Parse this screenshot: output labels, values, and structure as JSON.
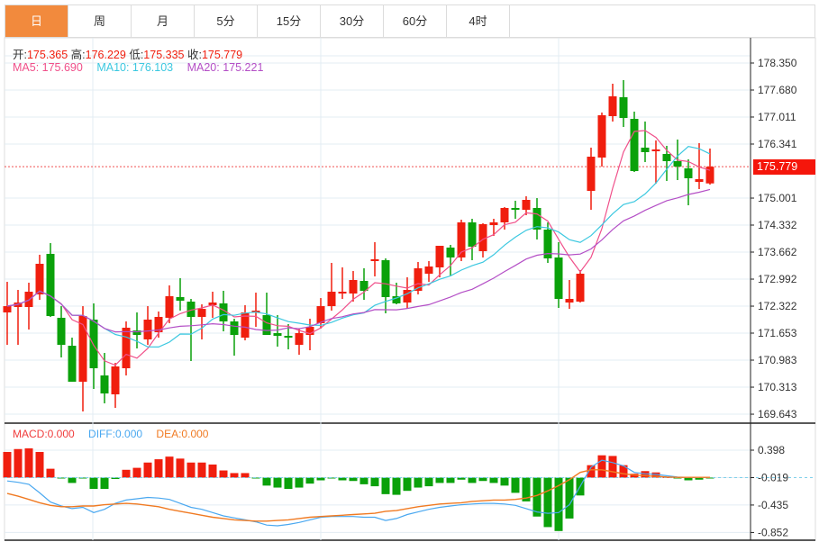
{
  "tabs": [
    {
      "label": "日",
      "active": true
    },
    {
      "label": "周"
    },
    {
      "label": "月"
    },
    {
      "label": "5分"
    },
    {
      "label": "15分"
    },
    {
      "label": "30分"
    },
    {
      "label": "60分"
    },
    {
      "label": "4时"
    }
  ],
  "ohlc_info": {
    "open_label": "开:",
    "open": "175.365",
    "high_label": "高:",
    "high": "176.229",
    "low_label": "低:",
    "low": "175.335",
    "close_label": "收:",
    "close": "175.779"
  },
  "ma_info": {
    "ma5": "MA5: 175.690",
    "ma10": "MA10: 176.103",
    "ma20": "MA20: 175.221"
  },
  "macd_info": {
    "macd": "MACD:0.000",
    "diff": "DIFF:0.000",
    "dea": "DEA:0.000"
  },
  "current_price": "175.779",
  "colors": {
    "up": "#f01e0e",
    "down": "#0aa10a",
    "ma5": "#f0508a",
    "ma10": "#3cc8e0",
    "ma20": "#b44fc6",
    "diff": "#4aa8f0",
    "dea": "#f07a22",
    "active_tab": "#f28a3d"
  },
  "chart_data": [
    {
      "type": "candlestick",
      "ylim": [
        169.643,
        178.35
      ],
      "yticks": [
        "178.350",
        "177.680",
        "177.011",
        "176.341",
        "175.001",
        "174.332",
        "173.662",
        "172.992",
        "172.322",
        "171.653",
        "170.983",
        "170.313",
        "169.643"
      ],
      "grid": true,
      "ma_periods": [
        5,
        10,
        20
      ],
      "ohlc": [
        [
          172.166,
          172.925,
          171.363,
          172.322
        ],
        [
          172.3,
          172.724,
          171.363,
          172.412
        ],
        [
          172.3,
          172.903,
          171.742,
          172.68
        ],
        [
          172.613,
          173.596,
          172.479,
          173.372
        ],
        [
          173.618,
          173.885,
          172.055,
          172.077
        ],
        [
          172.033,
          172.322,
          171.05,
          171.363
        ],
        [
          171.34,
          171.541,
          170.448,
          170.448
        ],
        [
          170.448,
          172.322,
          169.711,
          172.077
        ],
        [
          171.988,
          172.39,
          170.269,
          170.782
        ],
        [
          170.604,
          171.162,
          169.912,
          170.157
        ],
        [
          170.135,
          170.916,
          169.8,
          170.827
        ],
        [
          170.782,
          171.943,
          170.604,
          171.787
        ],
        [
          171.72,
          172.166,
          171.273,
          171.608
        ],
        [
          171.497,
          172.322,
          171.363,
          171.988
        ],
        [
          171.675,
          172.189,
          171.541,
          172.055
        ],
        [
          172.033,
          172.836,
          171.899,
          172.568
        ],
        [
          172.546,
          173.015,
          172.211,
          172.457
        ],
        [
          172.434,
          172.501,
          170.961,
          172.055
        ],
        [
          172.055,
          172.367,
          171.497,
          172.255
        ],
        [
          172.345,
          172.68,
          172.033,
          172.412
        ],
        [
          172.39,
          172.702,
          171.697,
          171.943
        ],
        [
          171.943,
          172.01,
          171.095,
          171.608
        ],
        [
          171.541,
          172.345,
          171.474,
          172.166
        ],
        [
          172.166,
          172.657,
          171.809,
          172.211
        ],
        [
          172.099,
          172.657,
          171.608,
          171.608
        ],
        [
          171.653,
          172.099,
          171.318,
          171.586
        ],
        [
          171.586,
          171.876,
          171.251,
          171.541
        ],
        [
          171.363,
          171.764,
          171.117,
          171.653
        ],
        [
          171.608,
          172.01,
          171.229,
          171.809
        ],
        [
          171.899,
          172.523,
          171.764,
          172.322
        ],
        [
          172.322,
          173.394,
          172.211,
          172.68
        ],
        [
          172.635,
          173.283,
          172.501,
          172.68
        ],
        [
          172.635,
          173.193,
          172.434,
          172.97
        ],
        [
          172.948,
          173.26,
          172.479,
          172.702
        ],
        [
          173.439,
          173.908,
          173.059,
          173.484
        ],
        [
          173.461,
          173.506,
          172.144,
          172.546
        ],
        [
          172.568,
          172.903,
          172.367,
          172.39
        ],
        [
          172.412,
          173.037,
          172.255,
          172.724
        ],
        [
          172.702,
          173.417,
          172.613,
          173.26
        ],
        [
          173.126,
          173.439,
          172.925,
          173.305
        ],
        [
          173.283,
          173.818,
          173.037,
          173.818
        ],
        [
          173.774,
          173.841,
          173.082,
          173.529
        ],
        [
          173.529,
          174.466,
          173.439,
          174.399
        ],
        [
          174.399,
          174.488,
          173.461,
          173.796
        ],
        [
          173.685,
          174.377,
          173.529,
          174.354
        ],
        [
          174.332,
          174.488,
          174.064,
          174.399
        ],
        [
          174.399,
          174.778,
          174.22,
          174.756
        ],
        [
          174.756,
          174.935,
          174.488,
          174.711
        ],
        [
          174.711,
          175.046,
          174.577,
          174.957
        ],
        [
          174.756,
          175.001,
          173.975,
          174.22
        ],
        [
          174.22,
          174.399,
          173.394,
          173.506
        ],
        [
          173.529,
          173.908,
          172.278,
          172.501
        ],
        [
          172.412,
          172.97,
          172.255,
          172.501
        ],
        [
          172.434,
          173.216,
          172.412,
          173.126
        ],
        [
          175.18,
          176.252,
          174.711,
          176.028
        ],
        [
          176.006,
          177.122,
          175.783,
          177.055
        ],
        [
          177.033,
          177.837,
          176.899,
          177.524
        ],
        [
          177.502,
          177.926,
          176.765,
          176.988
        ],
        [
          176.966,
          177.145,
          175.649,
          175.671
        ],
        [
          176.252,
          176.899,
          175.894,
          176.14
        ],
        [
          176.162,
          176.43,
          175.359,
          176.207
        ],
        [
          176.095,
          176.297,
          175.426,
          175.917
        ],
        [
          175.917,
          176.453,
          175.448,
          175.783
        ],
        [
          175.738,
          175.961,
          174.823,
          175.493
        ],
        [
          175.403,
          176.363,
          175.225,
          175.47
        ],
        [
          175.365,
          176.229,
          175.335,
          175.779
        ]
      ]
    },
    {
      "type": "macd",
      "ylim": [
        -0.852,
        0.398
      ],
      "yticks": [
        "0.398",
        "-0.019",
        "-0.435",
        "-0.852"
      ],
      "zero": -0.019,
      "histogram": [
        0.371,
        0.415,
        0.425,
        0.371,
        0.116,
        -0.02,
        -0.1,
        -0.02,
        -0.19,
        -0.19,
        -0.04,
        0.1,
        0.13,
        0.21,
        0.26,
        0.3,
        0.27,
        0.21,
        0.21,
        0.18,
        0.09,
        0.05,
        0.05,
        -0.03,
        -0.14,
        -0.17,
        -0.19,
        -0.17,
        -0.11,
        -0.06,
        -0.03,
        -0.06,
        -0.07,
        -0.12,
        -0.15,
        -0.27,
        -0.28,
        -0.22,
        -0.17,
        -0.15,
        -0.1,
        -0.1,
        -0.05,
        -0.1,
        -0.07,
        -0.1,
        -0.14,
        -0.25,
        -0.38,
        -0.61,
        -0.77,
        -0.83,
        -0.64,
        -0.29,
        0.17,
        0.32,
        0.31,
        0.17,
        0.04,
        0.08,
        0.06,
        -0.01,
        -0.03,
        -0.06,
        -0.05,
        -0.02
      ],
      "diff": [
        -0.07,
        -0.09,
        -0.12,
        -0.25,
        -0.39,
        -0.45,
        -0.49,
        -0.47,
        -0.55,
        -0.5,
        -0.41,
        -0.36,
        -0.34,
        -0.32,
        -0.33,
        -0.35,
        -0.41,
        -0.47,
        -0.5,
        -0.55,
        -0.6,
        -0.63,
        -0.66,
        -0.69,
        -0.74,
        -0.75,
        -0.73,
        -0.7,
        -0.66,
        -0.62,
        -0.61,
        -0.61,
        -0.61,
        -0.62,
        -0.62,
        -0.67,
        -0.64,
        -0.58,
        -0.54,
        -0.5,
        -0.47,
        -0.45,
        -0.43,
        -0.42,
        -0.41,
        -0.41,
        -0.42,
        -0.44,
        -0.49,
        -0.54,
        -0.56,
        -0.55,
        -0.43,
        -0.15,
        0.14,
        0.245,
        0.21,
        0.16,
        0.06,
        0.04,
        0.03,
        0.01,
        -0.01,
        -0.015,
        -0.015,
        -0.015
      ],
      "dea": [
        -0.26,
        -0.3,
        -0.35,
        -0.4,
        -0.44,
        -0.46,
        -0.46,
        -0.45,
        -0.45,
        -0.43,
        -0.42,
        -0.41,
        -0.42,
        -0.44,
        -0.46,
        -0.5,
        -0.53,
        -0.56,
        -0.59,
        -0.62,
        -0.64,
        -0.66,
        -0.67,
        -0.68,
        -0.68,
        -0.67,
        -0.66,
        -0.64,
        -0.62,
        -0.61,
        -0.6,
        -0.59,
        -0.58,
        -0.57,
        -0.56,
        -0.53,
        -0.52,
        -0.49,
        -0.46,
        -0.44,
        -0.42,
        -0.41,
        -0.4,
        -0.38,
        -0.37,
        -0.36,
        -0.36,
        -0.35,
        -0.33,
        -0.29,
        -0.22,
        -0.14,
        -0.05,
        0.06,
        0.1,
        0.1,
        0.07,
        0.04,
        0.02,
        0.01,
        0.0,
        -0.01,
        -0.015,
        -0.015,
        -0.015,
        -0.015
      ]
    }
  ]
}
